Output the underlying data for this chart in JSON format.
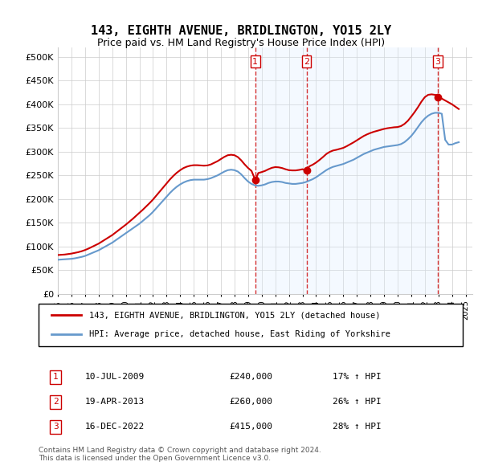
{
  "title": "143, EIGHTH AVENUE, BRIDLINGTON, YO15 2LY",
  "subtitle": "Price paid vs. HM Land Registry's House Price Index (HPI)",
  "ylabel": "",
  "xlim_start": 1995.0,
  "xlim_end": 2025.5,
  "ylim": [
    0,
    520000
  ],
  "yticks": [
    0,
    50000,
    100000,
    150000,
    200000,
    250000,
    300000,
    350000,
    400000,
    450000,
    500000
  ],
  "ytick_labels": [
    "£0",
    "£50K",
    "£100K",
    "£150K",
    "£200K",
    "£250K",
    "£300K",
    "£350K",
    "£400K",
    "£450K",
    "£500K"
  ],
  "xticks": [
    1995,
    1996,
    1997,
    1998,
    1999,
    2000,
    2001,
    2002,
    2003,
    2004,
    2005,
    2006,
    2007,
    2008,
    2009,
    2010,
    2011,
    2012,
    2013,
    2014,
    2015,
    2016,
    2017,
    2018,
    2019,
    2020,
    2021,
    2022,
    2023,
    2024,
    2025
  ],
  "sale_dates": [
    2009.53,
    2013.3,
    2022.96
  ],
  "sale_prices": [
    240000,
    260000,
    415000
  ],
  "sale_labels": [
    "1",
    "2",
    "3"
  ],
  "sale_label_color": "#cc0000",
  "transaction1": {
    "date": "10-JUL-2009",
    "price": "£240,000",
    "hpi": "17% ↑ HPI"
  },
  "transaction2": {
    "date": "19-APR-2013",
    "price": "£260,000",
    "hpi": "26% ↑ HPI"
  },
  "transaction3": {
    "date": "16-DEC-2022",
    "price": "£415,000",
    "hpi": "28% ↑ HPI"
  },
  "legend_line1": "143, EIGHTH AVENUE, BRIDLINGTON, YO15 2LY (detached house)",
  "legend_line2": "HPI: Average price, detached house, East Riding of Yorkshire",
  "footer": "Contains HM Land Registry data © Crown copyright and database right 2024.\nThis data is licensed under the Open Government Licence v3.0.",
  "property_color": "#cc0000",
  "hpi_color": "#6699cc",
  "shading_color": "#ddeeff",
  "vline_color": "#cc0000",
  "hpi_data_x": [
    1995.0,
    1995.25,
    1995.5,
    1995.75,
    1996.0,
    1996.25,
    1996.5,
    1996.75,
    1997.0,
    1997.25,
    1997.5,
    1997.75,
    1998.0,
    1998.25,
    1998.5,
    1998.75,
    1999.0,
    1999.25,
    1999.5,
    1999.75,
    2000.0,
    2000.25,
    2000.5,
    2000.75,
    2001.0,
    2001.25,
    2001.5,
    2001.75,
    2002.0,
    2002.25,
    2002.5,
    2002.75,
    2003.0,
    2003.25,
    2003.5,
    2003.75,
    2004.0,
    2004.25,
    2004.5,
    2004.75,
    2005.0,
    2005.25,
    2005.5,
    2005.75,
    2006.0,
    2006.25,
    2006.5,
    2006.75,
    2007.0,
    2007.25,
    2007.5,
    2007.75,
    2008.0,
    2008.25,
    2008.5,
    2008.75,
    2009.0,
    2009.25,
    2009.5,
    2009.75,
    2010.0,
    2010.25,
    2010.5,
    2010.75,
    2011.0,
    2011.25,
    2011.5,
    2011.75,
    2012.0,
    2012.25,
    2012.5,
    2012.75,
    2013.0,
    2013.25,
    2013.5,
    2013.75,
    2014.0,
    2014.25,
    2014.5,
    2014.75,
    2015.0,
    2015.25,
    2015.5,
    2015.75,
    2016.0,
    2016.25,
    2016.5,
    2016.75,
    2017.0,
    2017.25,
    2017.5,
    2017.75,
    2018.0,
    2018.25,
    2018.5,
    2018.75,
    2019.0,
    2019.25,
    2019.5,
    2019.75,
    2020.0,
    2020.25,
    2020.5,
    2020.75,
    2021.0,
    2021.25,
    2021.5,
    2021.75,
    2022.0,
    2022.25,
    2022.5,
    2022.75,
    2023.0,
    2023.25,
    2023.5,
    2023.75,
    2024.0,
    2024.25,
    2024.5
  ],
  "hpi_data_y": [
    72000,
    72500,
    73000,
    73500,
    74000,
    75000,
    76500,
    78000,
    80000,
    83000,
    86000,
    89000,
    92000,
    96000,
    100000,
    104000,
    108000,
    113000,
    118000,
    123000,
    128000,
    133000,
    138000,
    143000,
    148000,
    154000,
    160000,
    166000,
    173000,
    181000,
    189000,
    197000,
    205000,
    213000,
    220000,
    226000,
    231000,
    235000,
    238000,
    240000,
    241000,
    241000,
    241000,
    241000,
    242000,
    244000,
    247000,
    250000,
    254000,
    258000,
    261000,
    262000,
    261000,
    258000,
    252000,
    244000,
    237000,
    232000,
    229000,
    228000,
    229000,
    231000,
    234000,
    236000,
    237000,
    237000,
    236000,
    234000,
    233000,
    232000,
    232000,
    233000,
    234000,
    236000,
    239000,
    242000,
    246000,
    251000,
    256000,
    261000,
    265000,
    268000,
    270000,
    272000,
    274000,
    277000,
    280000,
    283000,
    287000,
    291000,
    295000,
    298000,
    301000,
    304000,
    306000,
    308000,
    310000,
    311000,
    312000,
    313000,
    314000,
    316000,
    320000,
    326000,
    333000,
    342000,
    352000,
    362000,
    370000,
    376000,
    380000,
    382000,
    382000,
    380000,
    325000,
    315000,
    315000,
    318000,
    320000
  ],
  "property_data_x": [
    1995.0,
    1995.25,
    1995.5,
    1995.75,
    1996.0,
    1996.25,
    1996.5,
    1996.75,
    1997.0,
    1997.25,
    1997.5,
    1997.75,
    1998.0,
    1998.25,
    1998.5,
    1998.75,
    1999.0,
    1999.25,
    1999.5,
    1999.75,
    2000.0,
    2000.25,
    2000.5,
    2000.75,
    2001.0,
    2001.25,
    2001.5,
    2001.75,
    2002.0,
    2002.25,
    2002.5,
    2002.75,
    2003.0,
    2003.25,
    2003.5,
    2003.75,
    2004.0,
    2004.25,
    2004.5,
    2004.75,
    2005.0,
    2005.25,
    2005.5,
    2005.75,
    2006.0,
    2006.25,
    2006.5,
    2006.75,
    2007.0,
    2007.25,
    2007.5,
    2007.75,
    2008.0,
    2008.25,
    2008.5,
    2008.75,
    2009.0,
    2009.25,
    2009.53,
    2009.75,
    2010.0,
    2010.25,
    2010.5,
    2010.75,
    2011.0,
    2011.25,
    2011.5,
    2011.75,
    2012.0,
    2012.25,
    2012.5,
    2012.75,
    2013.0,
    2013.3,
    2013.5,
    2013.75,
    2014.0,
    2014.25,
    2014.5,
    2014.75,
    2015.0,
    2015.25,
    2015.5,
    2015.75,
    2016.0,
    2016.25,
    2016.5,
    2016.75,
    2017.0,
    2017.25,
    2017.5,
    2017.75,
    2018.0,
    2018.25,
    2018.5,
    2018.75,
    2019.0,
    2019.25,
    2019.5,
    2019.75,
    2020.0,
    2020.25,
    2020.5,
    2020.75,
    2021.0,
    2021.25,
    2021.5,
    2021.75,
    2022.0,
    2022.25,
    2022.5,
    2022.96,
    2023.0,
    2023.25,
    2023.5,
    2023.75,
    2024.0,
    2024.25,
    2024.5
  ],
  "property_data_y": [
    82000,
    82500,
    83000,
    84000,
    85000,
    86500,
    88000,
    90000,
    92500,
    95500,
    99000,
    102500,
    106000,
    110500,
    115000,
    119500,
    124000,
    129500,
    135000,
    140500,
    146000,
    152000,
    158000,
    164500,
    171000,
    177500,
    184500,
    191500,
    199000,
    207500,
    216000,
    224500,
    233000,
    241500,
    249000,
    255500,
    261000,
    265500,
    268500,
    270500,
    271500,
    271500,
    271000,
    270500,
    271000,
    273000,
    276500,
    280000,
    284500,
    289000,
    292500,
    293500,
    292500,
    288500,
    281500,
    273000,
    265500,
    259500,
    240000,
    255000,
    257000,
    259500,
    263000,
    266000,
    267500,
    267000,
    265500,
    263000,
    261000,
    260500,
    260500,
    261500,
    263000,
    260000,
    269000,
    272500,
    277000,
    282500,
    288500,
    295000,
    299500,
    302500,
    304000,
    306000,
    308000,
    311500,
    315500,
    319500,
    324000,
    328500,
    333000,
    336500,
    339500,
    342000,
    344000,
    346000,
    348000,
    349500,
    350500,
    351500,
    352000,
    354000,
    358500,
    365000,
    374000,
    383500,
    394000,
    405500,
    415000,
    420000,
    421000,
    419000,
    415000,
    412000,
    408000,
    404000,
    400000,
    395000,
    390000
  ]
}
